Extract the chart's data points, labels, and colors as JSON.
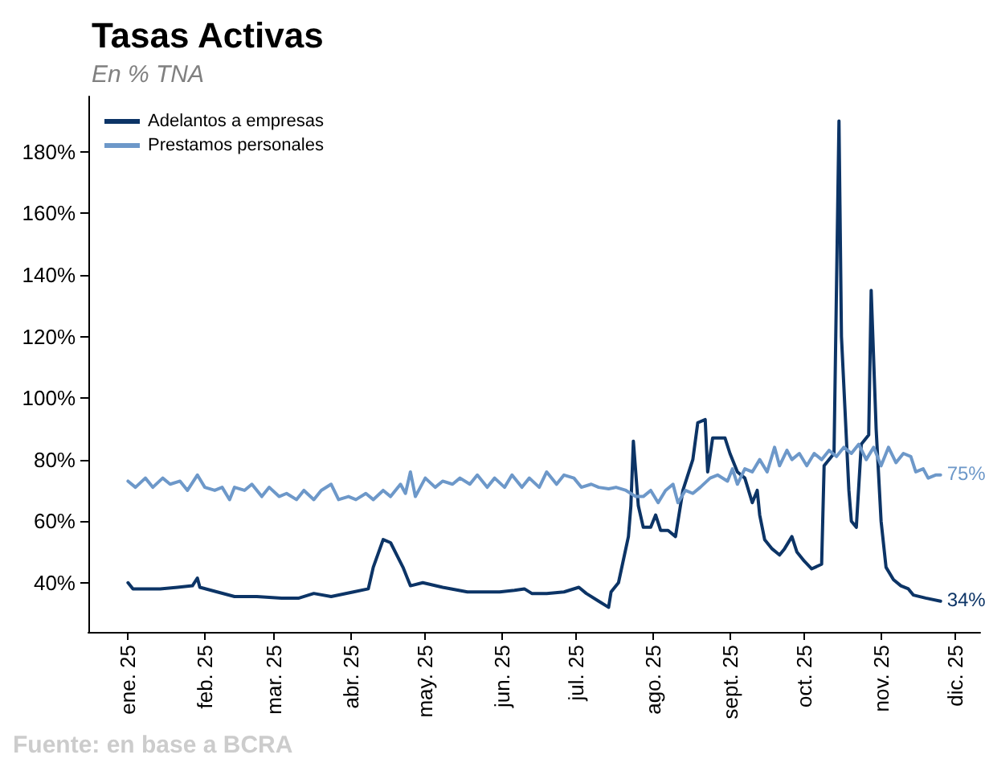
{
  "chart_data": {
    "type": "line",
    "title": "Tasas Activas",
    "subtitle": "En % TNA",
    "annotations": [
      {
        "text": "75%",
        "x": "2025-11-25",
        "y": 75
      },
      {
        "text": "34%",
        "x": "2025-11-25",
        "y": 34
      },
      "Fuente: en base a BCRA"
    ],
    "xlim": [
      "2024-12-16",
      "2025-12-11"
    ],
    "xticks": [
      {
        "value": "2025-01-01",
        "label": "ene. 25"
      },
      {
        "value": "2025-02-01",
        "label": "feb. 25"
      },
      {
        "value": "2025-03-01",
        "label": "mar. 25"
      },
      {
        "value": "2025-04-01",
        "label": "abr. 25"
      },
      {
        "value": "2025-05-01",
        "label": "may. 25"
      },
      {
        "value": "2025-06-01",
        "label": "jun. 25"
      },
      {
        "value": "2025-07-01",
        "label": "jul. 25"
      },
      {
        "value": "2025-08-01",
        "label": "ago. 25"
      },
      {
        "value": "2025-09-01",
        "label": "sept. 25"
      },
      {
        "value": "2025-10-01",
        "label": "oct. 25"
      },
      {
        "value": "2025-11-01",
        "label": "nov. 25"
      },
      {
        "value": "2025-12-01",
        "label": "dic. 25"
      }
    ],
    "ylim": [
      24,
      198
    ],
    "yticks": [
      {
        "value": 40,
        "label": "40%"
      },
      {
        "value": 60,
        "label": "60%"
      },
      {
        "value": 80,
        "label": "80%"
      },
      {
        "value": 100,
        "label": "100%"
      },
      {
        "value": 120,
        "label": "120%"
      },
      {
        "value": 140,
        "label": "140%"
      },
      {
        "value": 160,
        "label": "160%"
      },
      {
        "value": 180,
        "label": "180%"
      }
    ],
    "grid": false,
    "legend": "top left",
    "marker": "none",
    "line_style": "solid",
    "series": [
      {
        "name": "Adelantos a empresas",
        "color": "#0c3466",
        "x": [
          "2025-01-01",
          "2025-01-03",
          "2025-01-14",
          "2025-01-21",
          "2025-01-27",
          "2025-01-29",
          "2025-01-30",
          "2025-02-06",
          "2025-02-13",
          "2025-02-22",
          "2025-03-04",
          "2025-03-11",
          "2025-03-17",
          "2025-03-24",
          "2025-04-02",
          "2025-04-08",
          "2025-04-10",
          "2025-04-14",
          "2025-04-17",
          "2025-04-22",
          "2025-04-25",
          "2025-04-30",
          "2025-05-08",
          "2025-05-18",
          "2025-05-31",
          "2025-06-06",
          "2025-06-10",
          "2025-06-13",
          "2025-06-19",
          "2025-06-26",
          "2025-07-02",
          "2025-07-05",
          "2025-07-10",
          "2025-07-14",
          "2025-07-15",
          "2025-07-18",
          "2025-07-22",
          "2025-07-23",
          "2025-07-24",
          "2025-07-26",
          "2025-07-28",
          "2025-07-31",
          "2025-08-02",
          "2025-08-04",
          "2025-08-07",
          "2025-08-10",
          "2025-08-13",
          "2025-08-17",
          "2025-08-19",
          "2025-08-22",
          "2025-08-23",
          "2025-08-25",
          "2025-08-30",
          "2025-09-01",
          "2025-09-04",
          "2025-09-07",
          "2025-09-10",
          "2025-09-12",
          "2025-09-13",
          "2025-09-15",
          "2025-09-18",
          "2025-09-21",
          "2025-09-23",
          "2025-09-26",
          "2025-09-28",
          "2025-10-01",
          "2025-10-04",
          "2025-10-08",
          "2025-10-09",
          "2025-10-13",
          "2025-10-15",
          "2025-10-16",
          "2025-10-19",
          "2025-10-20",
          "2025-10-22",
          "2025-10-24",
          "2025-10-27",
          "2025-10-28",
          "2025-10-30",
          "2025-11-01",
          "2025-11-03",
          "2025-11-06",
          "2025-11-09",
          "2025-11-12",
          "2025-11-14",
          "2025-11-19",
          "2025-11-25"
        ],
        "values": [
          40,
          38,
          38,
          38.5,
          39,
          41.5,
          38.5,
          37,
          35.5,
          35.5,
          35,
          35,
          36.5,
          35.5,
          37,
          38,
          45,
          54,
          53,
          45,
          39,
          40,
          38.5,
          37,
          37,
          37.5,
          38,
          36.5,
          36.5,
          37,
          38.5,
          36.5,
          34,
          32,
          37,
          40,
          55,
          65,
          86,
          65,
          58,
          58,
          62,
          57,
          57,
          55,
          70,
          80,
          92,
          93,
          76,
          87,
          87,
          82,
          76,
          74,
          66,
          70,
          62,
          54,
          51,
          49,
          51,
          55,
          50,
          47,
          44.5,
          46,
          78,
          82,
          190,
          120,
          70,
          60,
          58,
          85,
          88,
          135,
          90,
          60,
          45,
          41,
          39,
          38,
          36,
          35,
          34
        ]
      },
      {
        "name": "Prestamos personales",
        "color": "#6d98c9",
        "x": [
          "2025-01-01",
          "2025-01-04",
          "2025-01-08",
          "2025-01-11",
          "2025-01-15",
          "2025-01-18",
          "2025-01-22",
          "2025-01-25",
          "2025-01-29",
          "2025-02-01",
          "2025-02-05",
          "2025-02-08",
          "2025-02-11",
          "2025-02-13",
          "2025-02-17",
          "2025-02-20",
          "2025-02-24",
          "2025-02-27",
          "2025-03-03",
          "2025-03-06",
          "2025-03-10",
          "2025-03-13",
          "2025-03-17",
          "2025-03-20",
          "2025-03-24",
          "2025-03-27",
          "2025-03-31",
          "2025-04-03",
          "2025-04-07",
          "2025-04-10",
          "2025-04-14",
          "2025-04-17",
          "2025-04-21",
          "2025-04-23",
          "2025-04-25",
          "2025-04-27",
          "2025-05-01",
          "2025-05-05",
          "2025-05-08",
          "2025-05-12",
          "2025-05-15",
          "2025-05-19",
          "2025-05-22",
          "2025-05-26",
          "2025-05-29",
          "2025-06-02",
          "2025-06-05",
          "2025-06-09",
          "2025-06-12",
          "2025-06-16",
          "2025-06-19",
          "2025-06-23",
          "2025-06-26",
          "2025-06-30",
          "2025-07-03",
          "2025-07-07",
          "2025-07-10",
          "2025-07-14",
          "2025-07-17",
          "2025-07-21",
          "2025-07-25",
          "2025-07-28",
          "2025-07-31",
          "2025-08-03",
          "2025-08-06",
          "2025-08-09",
          "2025-08-11",
          "2025-08-14",
          "2025-08-17",
          "2025-08-20",
          "2025-08-24",
          "2025-08-27",
          "2025-08-31",
          "2025-09-02",
          "2025-09-04",
          "2025-09-07",
          "2025-09-10",
          "2025-09-13",
          "2025-09-16",
          "2025-09-19",
          "2025-09-21",
          "2025-09-24",
          "2025-09-26",
          "2025-09-29",
          "2025-10-02",
          "2025-10-05",
          "2025-10-08",
          "2025-10-11",
          "2025-10-14",
          "2025-10-17",
          "2025-10-20",
          "2025-10-23",
          "2025-10-26",
          "2025-10-29",
          "2025-11-01",
          "2025-11-04",
          "2025-11-07",
          "2025-11-10",
          "2025-11-13",
          "2025-11-15",
          "2025-11-18",
          "2025-11-20",
          "2025-11-23",
          "2025-11-25"
        ],
        "values": [
          73,
          71,
          74,
          71,
          74,
          72,
          73,
          70,
          75,
          71,
          70,
          71,
          67,
          71,
          70,
          72,
          68,
          71,
          68,
          69,
          67,
          70,
          67,
          70,
          72,
          67,
          68,
          67,
          69,
          67,
          70,
          68,
          72,
          69,
          76,
          68,
          74,
          71,
          73,
          72,
          74,
          72,
          75,
          71,
          74,
          71,
          75,
          71,
          74,
          71,
          76,
          72,
          75,
          74,
          71,
          72,
          71,
          70.5,
          71,
          70,
          68,
          68,
          70,
          66,
          70,
          72,
          66,
          70,
          69,
          71,
          74,
          75,
          73,
          77,
          72,
          77,
          76,
          80,
          76,
          84,
          78,
          83,
          80,
          82,
          78,
          82,
          80,
          83,
          81,
          84,
          82,
          85,
          80,
          84,
          78,
          84,
          79,
          82,
          81,
          76,
          77,
          74,
          75,
          75
        ]
      }
    ]
  }
}
